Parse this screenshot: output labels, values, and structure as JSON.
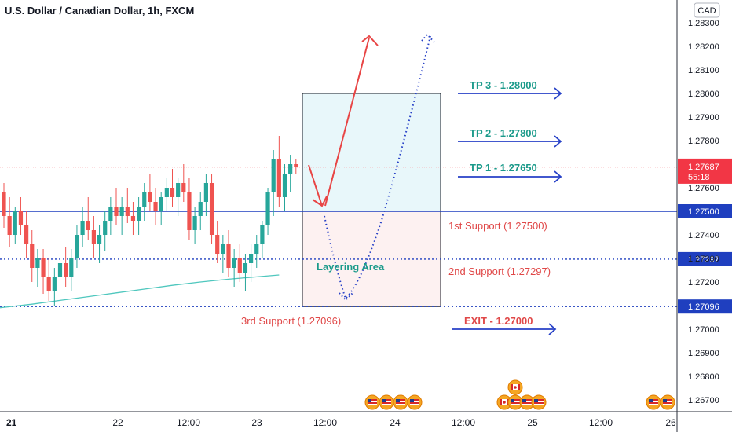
{
  "header": {
    "title": "U.S. Dollar / Canadian Dollar, 1h, FXCM"
  },
  "chart_data": {
    "type": "candlestick",
    "currency": "CAD",
    "ylim": [
      1.2662,
      1.2835
    ],
    "y_ticks": [
      "1.28300",
      "1.28200",
      "1.28100",
      "1.28000",
      "1.27900",
      "1.27800",
      "1.27700",
      "1.27600",
      "1.27400",
      "1.27300",
      "1.27200",
      "1.27000",
      "1.26900",
      "1.26800",
      "1.26700"
    ],
    "x_ticks": [
      "21",
      "22",
      "12:00",
      "23",
      "12:00",
      "24",
      "12:00",
      "25",
      "12:00",
      "26"
    ],
    "current_price": {
      "value": "1.27687",
      "countdown": "55:18",
      "color": "#f23645"
    },
    "horizontal_levels": [
      {
        "value": 1.275,
        "label": "1.27500",
        "style": "solid",
        "color": "#1f3fbf"
      },
      {
        "value": 1.27297,
        "label": "1.27297",
        "style": "dotted",
        "color": "#1f3fbf"
      },
      {
        "value": 1.27096,
        "label": "1.27096",
        "style": "dotted",
        "color": "#1f3fbf"
      }
    ],
    "candles": [
      [
        1.2758,
        1.2762,
        1.2743,
        1.2748
      ],
      [
        1.2748,
        1.2756,
        1.2735,
        1.274
      ],
      [
        1.274,
        1.2752,
        1.2736,
        1.275
      ],
      [
        1.275,
        1.2756,
        1.274,
        1.2744
      ],
      [
        1.2744,
        1.275,
        1.273,
        1.2736
      ],
      [
        1.2736,
        1.2742,
        1.272,
        1.2726
      ],
      [
        1.2726,
        1.2734,
        1.2718,
        1.273
      ],
      [
        1.273,
        1.2734,
        1.2715,
        1.2722
      ],
      [
        1.2722,
        1.273,
        1.2712,
        1.2716
      ],
      [
        1.2716,
        1.2726,
        1.271,
        1.2722
      ],
      [
        1.2722,
        1.2732,
        1.2715,
        1.2728
      ],
      [
        1.2728,
        1.2735,
        1.2718,
        1.2722
      ],
      [
        1.2722,
        1.2734,
        1.2716,
        1.273
      ],
      [
        1.273,
        1.2744,
        1.2726,
        1.274
      ],
      [
        1.274,
        1.2752,
        1.2735,
        1.2746
      ],
      [
        1.2746,
        1.2756,
        1.2738,
        1.2742
      ],
      [
        1.2742,
        1.2748,
        1.273,
        1.2736
      ],
      [
        1.2736,
        1.2744,
        1.2728,
        1.274
      ],
      [
        1.274,
        1.275,
        1.2733,
        1.2746
      ],
      [
        1.2746,
        1.2756,
        1.274,
        1.2752
      ],
      [
        1.2752,
        1.276,
        1.2744,
        1.2748
      ],
      [
        1.2748,
        1.2756,
        1.274,
        1.2752
      ],
      [
        1.2752,
        1.276,
        1.2745,
        1.2748
      ],
      [
        1.2748,
        1.2754,
        1.274,
        1.2746
      ],
      [
        1.2746,
        1.2756,
        1.274,
        1.2752
      ],
      [
        1.2752,
        1.2762,
        1.2746,
        1.2758
      ],
      [
        1.2758,
        1.2766,
        1.275,
        1.2754
      ],
      [
        1.2754,
        1.276,
        1.2744,
        1.275
      ],
      [
        1.275,
        1.2758,
        1.2744,
        1.2756
      ],
      [
        1.2756,
        1.2764,
        1.275,
        1.276
      ],
      [
        1.276,
        1.2768,
        1.2752,
        1.2756
      ],
      [
        1.2756,
        1.2764,
        1.2748,
        1.2762
      ],
      [
        1.2762,
        1.277,
        1.2754,
        1.2758
      ],
      [
        1.2758,
        1.2764,
        1.2738,
        1.2742
      ],
      [
        1.2742,
        1.2752,
        1.2736,
        1.2748
      ],
      [
        1.2748,
        1.2758,
        1.2742,
        1.2754
      ],
      [
        1.2754,
        1.2766,
        1.2748,
        1.2762
      ],
      [
        1.2762,
        1.2766,
        1.2736,
        1.274
      ],
      [
        1.274,
        1.2746,
        1.2728,
        1.2732
      ],
      [
        1.2732,
        1.274,
        1.2724,
        1.2736
      ],
      [
        1.2736,
        1.2742,
        1.2722,
        1.2726
      ],
      [
        1.2726,
        1.2734,
        1.2718,
        1.273
      ],
      [
        1.273,
        1.2736,
        1.272,
        1.2724
      ],
      [
        1.2724,
        1.2732,
        1.2716,
        1.2728
      ],
      [
        1.2728,
        1.2736,
        1.272,
        1.2732
      ],
      [
        1.2732,
        1.274,
        1.2726,
        1.2736
      ],
      [
        1.2736,
        1.2746,
        1.273,
        1.2744
      ],
      [
        1.2744,
        1.276,
        1.274,
        1.2758
      ],
      [
        1.2758,
        1.2776,
        1.2748,
        1.2772
      ],
      [
        1.2772,
        1.2782,
        1.2752,
        1.2756
      ],
      [
        1.2756,
        1.277,
        1.275,
        1.2766
      ],
      [
        1.2766,
        1.2774,
        1.2758,
        1.277
      ],
      [
        1.277,
        1.2772,
        1.2766,
        1.2769
      ]
    ],
    "moving_average": [
      [
        -1,
        1.2709
      ],
      [
        5,
        1.27106
      ],
      [
        10,
        1.27122
      ],
      [
        15,
        1.27138
      ],
      [
        20,
        1.27154
      ],
      [
        25,
        1.2717
      ],
      [
        30,
        1.27186
      ],
      [
        35,
        1.272
      ],
      [
        40,
        1.27212
      ],
      [
        45,
        1.27222
      ],
      [
        49,
        1.2723
      ]
    ]
  },
  "annotations": {
    "tp3": "TP 3 - 1.28000",
    "tp2": "TP 2 - 1.27800",
    "tp1": "TP 1 - 1.27650",
    "support1": "1st Support (1.27500)",
    "support2": "2nd Support (1.27297)",
    "support3": "3rd Support (1.27096)",
    "exit": "EXIT - 1.27000",
    "layering": "Layering Area"
  },
  "colors": {
    "up": "#26a69a",
    "down": "#ef5350",
    "levels": "#1f3fbf",
    "tp_text": "#1a9a8a",
    "support_text": "#e04848",
    "box_top_fill": "#e8f7fa",
    "box_bottom_fill": "#fdf1f1",
    "moving_average": "#4fc7be"
  },
  "events": [
    {
      "x_index": 71,
      "icons": [
        "us-flag-icon",
        "us-flag-icon",
        "us-flag-icon",
        "us-flag-icon"
      ]
    },
    {
      "x_index": 121,
      "icons": [
        "ca-flag-icon",
        "ca-flag-icon",
        "us-flag-icon",
        "us-flag-icon",
        "us-flag-icon"
      ]
    },
    {
      "x_index": 155,
      "icons": [
        "us-flag-icon",
        "us-flag-icon"
      ]
    }
  ]
}
